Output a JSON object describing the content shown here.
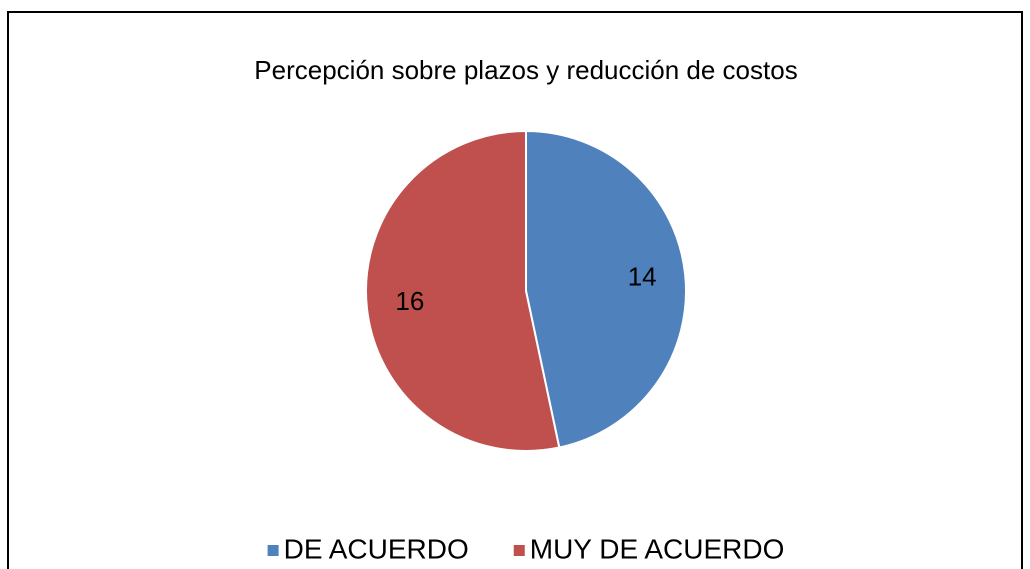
{
  "chart_data": {
    "type": "pie",
    "title": "Percepción sobre plazos y reducción de costos",
    "categories": [
      "DE ACUERDO",
      "MUY DE ACUERDO"
    ],
    "values": [
      14,
      16
    ],
    "colors": [
      "#4f81bd",
      "#c0504d"
    ],
    "legend": "bottom"
  }
}
